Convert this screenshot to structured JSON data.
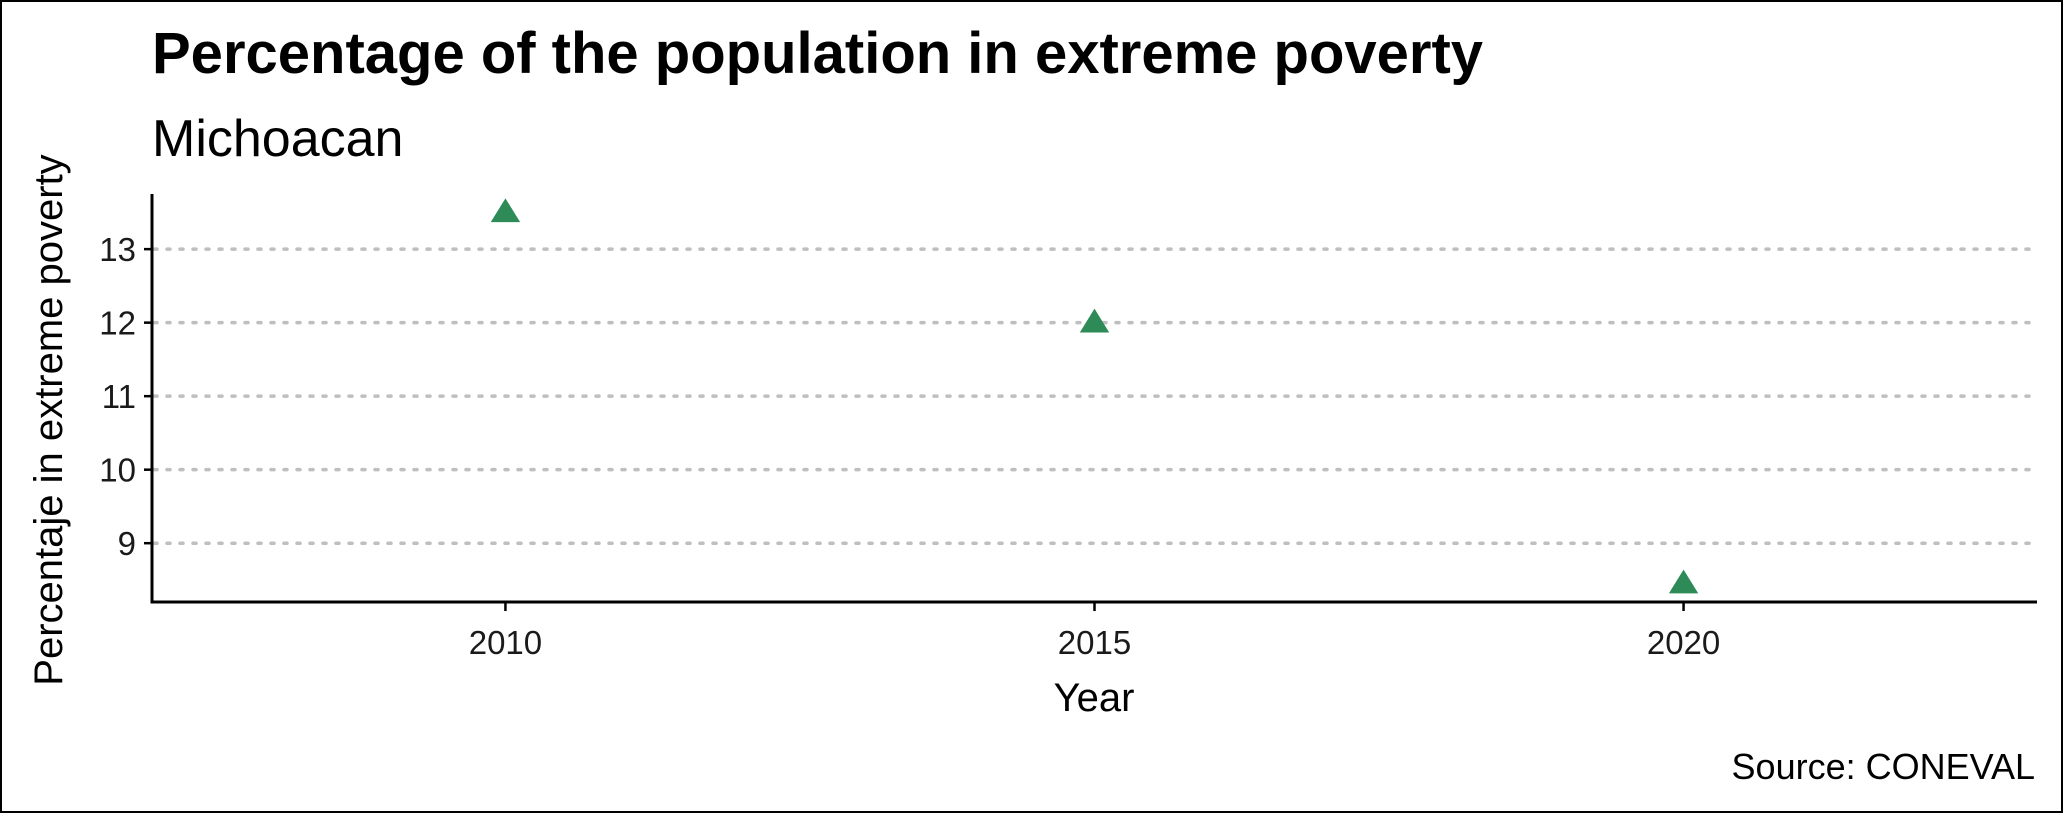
{
  "chart_data": {
    "type": "scatter",
    "title": "Percentage of the population in extreme poverty",
    "subtitle": "Michoacan",
    "xlabel": "Year",
    "ylabel": "Percentaje in extreme poverty",
    "caption": "Source: CONEVAL",
    "x_ticks": [
      2010,
      2015,
      2020
    ],
    "y_ticks": [
      9,
      10,
      11,
      12,
      13
    ],
    "xlim": [
      2007,
      2023
    ],
    "ylim": [
      8.2,
      13.75
    ],
    "grid": "horizontal-dotted",
    "marker": "triangle",
    "points": [
      {
        "x": 2010,
        "y": 13.5
      },
      {
        "x": 2015,
        "y": 12.0
      },
      {
        "x": 2020,
        "y": 8.45
      }
    ],
    "colors": {
      "point": "#2e8b57",
      "grid": "#bfbfbf",
      "axis": "#000000"
    }
  }
}
